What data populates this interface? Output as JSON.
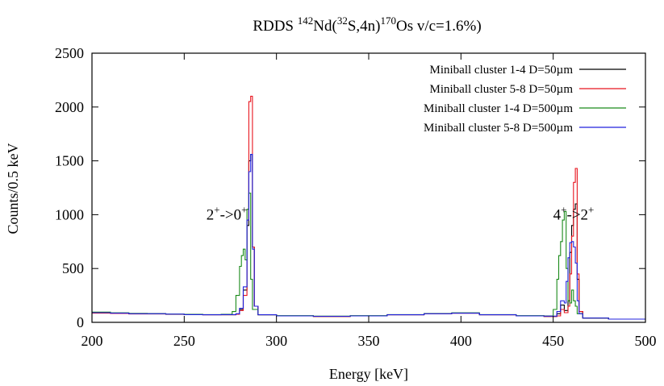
{
  "chart_data": {
    "type": "line",
    "title": {
      "prefix": "RDDS ",
      "a1": "142",
      "t1": "Nd(",
      "a2": "32",
      "t2": "S,4n)",
      "a3": "170",
      "t3": "Os v/c=1.6%)"
    },
    "xlabel": "Energy [keV]",
    "ylabel": "Counts/0.5 keV",
    "xlim": [
      200,
      500
    ],
    "ylim": [
      0,
      2500
    ],
    "xticks": [
      200,
      250,
      300,
      350,
      400,
      450,
      500
    ],
    "yticks": [
      0,
      500,
      1000,
      1500,
      2000,
      2500
    ],
    "grid": false,
    "legend_position": "top-right",
    "annotations": [
      {
        "base1": "2",
        "sup1": "+",
        "mid": "->0",
        "sup2": "+",
        "x": 262,
        "y": 1000
      },
      {
        "base1": "4",
        "sup1": "+",
        "mid": "->2",
        "sup2": "+",
        "x": 450,
        "y": 1000
      }
    ],
    "series": [
      {
        "name": "Miniball cluster 1-4 D=50µm",
        "color": "#000000",
        "points": [
          [
            200,
            90
          ],
          [
            210,
            85
          ],
          [
            220,
            80
          ],
          [
            230,
            80
          ],
          [
            240,
            75
          ],
          [
            250,
            72
          ],
          [
            260,
            70
          ],
          [
            270,
            70
          ],
          [
            278,
            75
          ],
          [
            280,
            120
          ],
          [
            282,
            300
          ],
          [
            284,
            900
          ],
          [
            285,
            1500
          ],
          [
            286,
            1560
          ],
          [
            287,
            700
          ],
          [
            288,
            150
          ],
          [
            290,
            70
          ],
          [
            300,
            60
          ],
          [
            320,
            55
          ],
          [
            340,
            60
          ],
          [
            360,
            70
          ],
          [
            380,
            80
          ],
          [
            395,
            85
          ],
          [
            410,
            70
          ],
          [
            430,
            60
          ],
          [
            445,
            55
          ],
          [
            452,
            80
          ],
          [
            454,
            160
          ],
          [
            456,
            110
          ],
          [
            458,
            200
          ],
          [
            459,
            650
          ],
          [
            460,
            900
          ],
          [
            461,
            1050
          ],
          [
            462,
            1100
          ],
          [
            463,
            400
          ],
          [
            464,
            100
          ],
          [
            466,
            40
          ],
          [
            480,
            30
          ],
          [
            500,
            25
          ]
        ]
      },
      {
        "name": "Miniball cluster 5-8 D=50µm",
        "color": "#e8141e",
        "points": [
          [
            200,
            85
          ],
          [
            210,
            82
          ],
          [
            220,
            78
          ],
          [
            230,
            78
          ],
          [
            240,
            74
          ],
          [
            250,
            72
          ],
          [
            260,
            70
          ],
          [
            270,
            70
          ],
          [
            278,
            75
          ],
          [
            280,
            110
          ],
          [
            282,
            250
          ],
          [
            284,
            950
          ],
          [
            285,
            2050
          ],
          [
            286,
            2100
          ],
          [
            287,
            700
          ],
          [
            288,
            150
          ],
          [
            290,
            70
          ],
          [
            300,
            60
          ],
          [
            320,
            55
          ],
          [
            340,
            60
          ],
          [
            360,
            70
          ],
          [
            380,
            80
          ],
          [
            395,
            85
          ],
          [
            410,
            70
          ],
          [
            430,
            60
          ],
          [
            445,
            55
          ],
          [
            452,
            60
          ],
          [
            454,
            120
          ],
          [
            456,
            90
          ],
          [
            458,
            150
          ],
          [
            459,
            450
          ],
          [
            460,
            800
          ],
          [
            461,
            1300
          ],
          [
            462,
            1430
          ],
          [
            463,
            450
          ],
          [
            464,
            100
          ],
          [
            466,
            40
          ],
          [
            480,
            30
          ],
          [
            500,
            25
          ]
        ]
      },
      {
        "name": "Miniball cluster 1-4 D=500µm",
        "color": "#1a8a1a",
        "points": [
          [
            200,
            95
          ],
          [
            210,
            88
          ],
          [
            220,
            83
          ],
          [
            230,
            80
          ],
          [
            240,
            76
          ],
          [
            250,
            74
          ],
          [
            260,
            72
          ],
          [
            270,
            75
          ],
          [
            276,
            100
          ],
          [
            278,
            250
          ],
          [
            280,
            520
          ],
          [
            281,
            620
          ],
          [
            282,
            680
          ],
          [
            283,
            580
          ],
          [
            284,
            1050
          ],
          [
            285,
            1200
          ],
          [
            286,
            400
          ],
          [
            287,
            120
          ],
          [
            290,
            70
          ],
          [
            300,
            62
          ],
          [
            320,
            58
          ],
          [
            340,
            62
          ],
          [
            360,
            72
          ],
          [
            380,
            82
          ],
          [
            395,
            88
          ],
          [
            410,
            72
          ],
          [
            430,
            62
          ],
          [
            445,
            60
          ],
          [
            450,
            120
          ],
          [
            452,
            400
          ],
          [
            453,
            620
          ],
          [
            454,
            750
          ],
          [
            455,
            950
          ],
          [
            456,
            1030
          ],
          [
            457,
            500
          ],
          [
            458,
            200
          ],
          [
            459,
            180
          ],
          [
            460,
            300
          ],
          [
            461,
            200
          ],
          [
            462,
            150
          ],
          [
            463,
            80
          ],
          [
            466,
            40
          ],
          [
            480,
            30
          ],
          [
            500,
            25
          ]
        ]
      },
      {
        "name": "Miniball cluster 5-8 D=500µm",
        "color": "#2222dd",
        "points": [
          [
            200,
            90
          ],
          [
            210,
            85
          ],
          [
            220,
            80
          ],
          [
            230,
            80
          ],
          [
            240,
            76
          ],
          [
            250,
            72
          ],
          [
            260,
            70
          ],
          [
            270,
            72
          ],
          [
            278,
            80
          ],
          [
            280,
            130
          ],
          [
            282,
            330
          ],
          [
            284,
            950
          ],
          [
            285,
            1400
          ],
          [
            286,
            1560
          ],
          [
            287,
            680
          ],
          [
            288,
            150
          ],
          [
            290,
            70
          ],
          [
            300,
            60
          ],
          [
            320,
            56
          ],
          [
            340,
            60
          ],
          [
            360,
            70
          ],
          [
            380,
            80
          ],
          [
            395,
            85
          ],
          [
            410,
            70
          ],
          [
            430,
            60
          ],
          [
            445,
            58
          ],
          [
            452,
            100
          ],
          [
            454,
            200
          ],
          [
            456,
            180
          ],
          [
            457,
            380
          ],
          [
            458,
            600
          ],
          [
            459,
            740
          ],
          [
            460,
            750
          ],
          [
            461,
            700
          ],
          [
            462,
            550
          ],
          [
            463,
            200
          ],
          [
            464,
            80
          ],
          [
            466,
            40
          ],
          [
            480,
            30
          ],
          [
            500,
            25
          ]
        ]
      }
    ]
  }
}
